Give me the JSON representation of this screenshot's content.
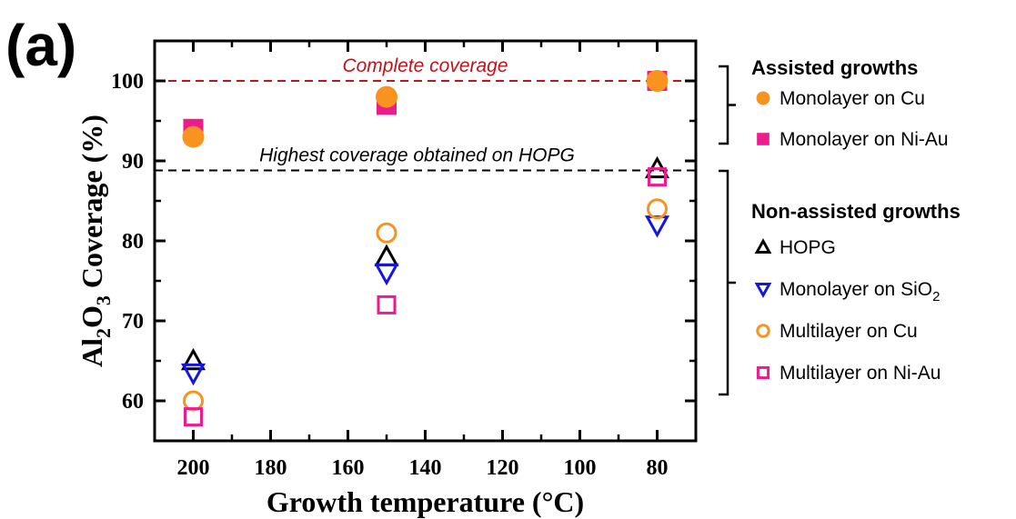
{
  "panel_label": "(a)",
  "chart_data": {
    "type": "scatter",
    "title": "",
    "xlabel": "Growth temperature (°C)",
    "ylabel_parts": {
      "a": "Al",
      "b": "2",
      "c": "O",
      "d": "3",
      "e": " Coverage (%)"
    },
    "xlim": [
      210,
      70
    ],
    "ylim": [
      55,
      105
    ],
    "xticks": [
      200,
      180,
      160,
      140,
      120,
      100,
      80
    ],
    "yticks": [
      60,
      70,
      80,
      90,
      100
    ],
    "grid": false,
    "reference_lines": [
      {
        "y": 100,
        "label": "Complete coverage",
        "color": "#c0141c"
      },
      {
        "y": 88.8,
        "label": "Highest coverage obtained on HOPG",
        "color": "#000000"
      }
    ],
    "series": [
      {
        "name": "Monolayer on Cu",
        "marker": "circle",
        "filled": true,
        "color": "#f7931e",
        "x": [
          200,
          150,
          80
        ],
        "y": [
          93,
          98,
          100
        ]
      },
      {
        "name": "Monolayer on Ni-Au",
        "marker": "square",
        "filled": true,
        "color": "#ec1c8c",
        "x": [
          200,
          150,
          80
        ],
        "y": [
          94,
          97,
          100
        ]
      },
      {
        "name": "HOPG",
        "marker": "triangle-up",
        "filled": false,
        "color": "#000000",
        "x": [
          200,
          150,
          80
        ],
        "y": [
          65,
          78,
          89
        ]
      },
      {
        "name": "Monolayer on SiO",
        "name_sub": "2",
        "marker": "triangle-down",
        "filled": false,
        "color": "#1414e6",
        "x": [
          200,
          150,
          80
        ],
        "y": [
          63.5,
          76,
          82
        ]
      },
      {
        "name": "Multilayer on Cu",
        "marker": "circle",
        "filled": false,
        "color": "#f7931e",
        "x": [
          200,
          150,
          80
        ],
        "y": [
          60,
          81,
          84
        ]
      },
      {
        "name": "Multilayer on Ni-Au",
        "marker": "square",
        "filled": false,
        "color": "#ec1c8c",
        "x": [
          200,
          150,
          80
        ],
        "y": [
          58,
          72,
          88
        ]
      }
    ],
    "legend": {
      "placement": "right",
      "groups": [
        {
          "title": "Assisted growths",
          "series_idx": [
            0,
            1
          ]
        },
        {
          "title": "Non-assisted growths",
          "series_idx": [
            2,
            3,
            4,
            5
          ]
        }
      ]
    }
  }
}
